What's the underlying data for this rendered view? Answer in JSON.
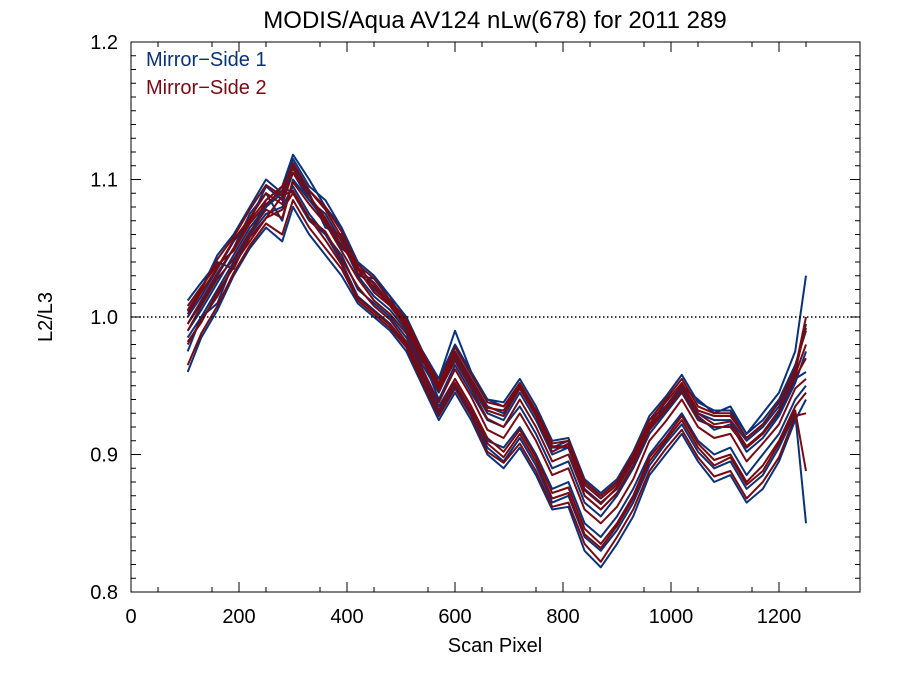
{
  "chart_data": {
    "type": "line",
    "title": "MODIS/Aqua AV124 nLw(678) for 2011 289",
    "xlabel": "Scan Pixel",
    "ylabel": "L2/L3",
    "xlim": [
      0,
      1350
    ],
    "ylim": [
      0.8,
      1.2
    ],
    "x_ticks": [
      0,
      200,
      400,
      600,
      800,
      1000,
      1200
    ],
    "y_ticks": [
      0.8,
      0.9,
      1.0,
      1.1,
      1.2
    ],
    "x_tick_labels": [
      "0",
      "200",
      "400",
      "600",
      "800",
      "1000",
      "1200"
    ],
    "y_tick_labels": [
      "0.8",
      "0.9",
      "1.0",
      "1.1",
      "1.2"
    ],
    "reference_line": {
      "y": 1.0,
      "style": "dotted",
      "color": "#000000"
    },
    "legend": {
      "placement": "top-left",
      "entries": [
        {
          "label": "Mirror−Side 1",
          "color": "#0a3278"
        },
        {
          "label": "Mirror−Side 2",
          "color": "#780a14"
        }
      ]
    },
    "x": [
      105,
      130,
      160,
      190,
      220,
      250,
      280,
      300,
      330,
      360,
      390,
      420,
      450,
      480,
      510,
      540,
      570,
      600,
      630,
      660,
      690,
      720,
      750,
      780,
      810,
      840,
      870,
      900,
      930,
      960,
      990,
      1020,
      1050,
      1080,
      1110,
      1140,
      1170,
      1200,
      1230,
      1250
    ],
    "series": [
      {
        "mirror_side": 1,
        "color": "#0a3278",
        "values": [
          1.012,
          1.025,
          1.04,
          1.035,
          1.06,
          1.085,
          1.095,
          1.118,
          1.1,
          1.08,
          1.065,
          1.03,
          1.028,
          1.015,
          0.99,
          0.975,
          0.955,
          0.99,
          0.96,
          0.94,
          0.935,
          0.95,
          0.93,
          0.905,
          0.91,
          0.88,
          0.87,
          0.88,
          0.9,
          0.925,
          0.935,
          0.95,
          0.94,
          0.93,
          0.935,
          0.915,
          0.93,
          0.945,
          0.975,
          1.03
        ]
      },
      {
        "mirror_side": 1,
        "color": "#0a3278",
        "values": [
          0.995,
          1.01,
          1.03,
          1.05,
          1.075,
          1.09,
          1.07,
          1.1,
          1.085,
          1.07,
          1.05,
          1.04,
          1.02,
          1.01,
          1.0,
          0.97,
          0.94,
          0.965,
          0.945,
          0.925,
          0.92,
          0.935,
          0.915,
          0.89,
          0.895,
          0.865,
          0.855,
          0.87,
          0.89,
          0.915,
          0.93,
          0.945,
          0.925,
          0.92,
          0.92,
          0.905,
          0.915,
          0.93,
          0.955,
          0.96
        ]
      },
      {
        "mirror_side": 1,
        "color": "#0a3278",
        "values": [
          0.975,
          1.0,
          1.01,
          1.04,
          1.06,
          1.08,
          1.095,
          1.09,
          1.07,
          1.06,
          1.045,
          1.02,
          1.01,
          1.0,
          0.985,
          0.96,
          0.935,
          0.955,
          0.935,
          0.91,
          0.905,
          0.92,
          0.9,
          0.875,
          0.88,
          0.85,
          0.84,
          0.855,
          0.875,
          0.9,
          0.915,
          0.93,
          0.91,
          0.9,
          0.905,
          0.885,
          0.9,
          0.915,
          0.94,
          0.95
        ]
      },
      {
        "mirror_side": 1,
        "color": "#0a3278",
        "values": [
          0.96,
          0.985,
          1.005,
          1.03,
          1.05,
          1.065,
          1.055,
          1.08,
          1.06,
          1.045,
          1.03,
          1.01,
          1.0,
          0.99,
          0.975,
          0.95,
          0.925,
          0.945,
          0.925,
          0.9,
          0.89,
          0.905,
          0.885,
          0.86,
          0.862,
          0.83,
          0.818,
          0.835,
          0.855,
          0.885,
          0.9,
          0.915,
          0.895,
          0.88,
          0.885,
          0.865,
          0.875,
          0.895,
          0.925,
          0.94
        ]
      },
      {
        "mirror_side": 1,
        "color": "#0a3278",
        "values": [
          0.99,
          1.005,
          1.025,
          1.045,
          1.065,
          1.08,
          1.09,
          1.105,
          1.085,
          1.075,
          1.055,
          1.03,
          1.015,
          1.005,
          0.99,
          0.965,
          0.945,
          0.97,
          0.95,
          0.93,
          0.925,
          0.945,
          0.925,
          0.9,
          0.905,
          0.875,
          0.865,
          0.875,
          0.895,
          0.92,
          0.935,
          0.95,
          0.93,
          0.925,
          0.925,
          0.91,
          0.92,
          0.935,
          0.96,
          0.995
        ]
      },
      {
        "mirror_side": 1,
        "color": "#0a3278",
        "values": [
          1.0,
          1.015,
          1.035,
          1.055,
          1.07,
          1.095,
          1.085,
          1.11,
          1.09,
          1.065,
          1.06,
          1.035,
          1.025,
          1.01,
          0.995,
          0.97,
          0.95,
          0.975,
          0.955,
          0.935,
          0.93,
          0.95,
          0.93,
          0.905,
          0.905,
          0.87,
          0.86,
          0.872,
          0.892,
          0.918,
          0.932,
          0.948,
          0.928,
          0.918,
          0.922,
          0.902,
          0.912,
          0.928,
          0.952,
          0.975
        ]
      },
      {
        "mirror_side": 1,
        "color": "#0a3278",
        "values": [
          0.985,
          1.0,
          1.02,
          1.04,
          1.06,
          1.075,
          1.08,
          1.095,
          1.075,
          1.06,
          1.04,
          1.015,
          1.005,
          0.995,
          0.98,
          0.955,
          0.93,
          0.95,
          0.93,
          0.905,
          0.895,
          0.912,
          0.892,
          0.865,
          0.87,
          0.84,
          0.83,
          0.845,
          0.865,
          0.892,
          0.908,
          0.922,
          0.902,
          0.89,
          0.895,
          0.875,
          0.885,
          0.905,
          0.93,
          0.85
        ]
      },
      {
        "mirror_side": 1,
        "color": "#0a3278",
        "values": [
          1.005,
          1.02,
          1.045,
          1.06,
          1.08,
          1.1,
          1.09,
          1.115,
          1.095,
          1.085,
          1.065,
          1.04,
          1.03,
          1.015,
          1.0,
          0.975,
          0.955,
          0.98,
          0.96,
          0.94,
          0.938,
          0.955,
          0.935,
          0.91,
          0.912,
          0.882,
          0.872,
          0.882,
          0.902,
          0.928,
          0.942,
          0.958,
          0.938,
          0.932,
          0.932,
          0.915,
          0.925,
          0.94,
          0.965,
          0.99
        ]
      },
      {
        "mirror_side": 2,
        "color": "#780a14",
        "values": [
          1.008,
          1.022,
          1.038,
          1.048,
          1.068,
          1.082,
          1.092,
          1.112,
          1.092,
          1.078,
          1.058,
          1.032,
          1.022,
          1.008,
          0.992,
          0.968,
          0.948,
          0.972,
          0.952,
          0.932,
          0.928,
          0.948,
          0.928,
          0.902,
          0.908,
          0.878,
          0.868,
          0.878,
          0.898,
          0.922,
          0.938,
          0.952,
          0.932,
          0.928,
          0.928,
          0.912,
          0.922,
          0.938,
          0.962,
          1.0
        ]
      },
      {
        "mirror_side": 2,
        "color": "#780a14",
        "values": [
          0.99,
          1.008,
          1.028,
          1.042,
          1.062,
          1.078,
          1.072,
          1.098,
          1.082,
          1.068,
          1.048,
          1.028,
          1.012,
          1.002,
          0.988,
          0.962,
          0.938,
          0.962,
          0.942,
          0.918,
          0.912,
          0.93,
          0.91,
          0.885,
          0.89,
          0.86,
          0.85,
          0.862,
          0.882,
          0.91,
          0.924,
          0.94,
          0.92,
          0.912,
          0.915,
          0.895,
          0.908,
          0.922,
          0.948,
          0.955
        ]
      },
      {
        "mirror_side": 2,
        "color": "#780a14",
        "values": [
          0.98,
          0.998,
          1.015,
          1.038,
          1.055,
          1.072,
          1.088,
          1.092,
          1.072,
          1.062,
          1.042,
          1.022,
          1.008,
          0.998,
          0.982,
          0.958,
          0.932,
          0.955,
          0.935,
          0.912,
          0.902,
          0.918,
          0.898,
          0.872,
          0.876,
          0.846,
          0.835,
          0.85,
          0.87,
          0.898,
          0.912,
          0.928,
          0.908,
          0.896,
          0.9,
          0.88,
          0.892,
          0.91,
          0.935,
          0.945
        ]
      },
      {
        "mirror_side": 2,
        "color": "#780a14",
        "values": [
          0.965,
          0.988,
          1.008,
          1.032,
          1.052,
          1.068,
          1.06,
          1.085,
          1.065,
          1.05,
          1.035,
          1.012,
          1.002,
          0.992,
          0.978,
          0.952,
          0.928,
          0.948,
          0.928,
          0.902,
          0.894,
          0.908,
          0.888,
          0.862,
          0.865,
          0.835,
          0.822,
          0.84,
          0.86,
          0.888,
          0.904,
          0.918,
          0.898,
          0.884,
          0.888,
          0.868,
          0.88,
          0.898,
          0.928,
          0.93
        ]
      },
      {
        "mirror_side": 2,
        "color": "#780a14",
        "values": [
          0.995,
          1.012,
          1.032,
          1.05,
          1.07,
          1.085,
          1.095,
          1.108,
          1.088,
          1.072,
          1.052,
          1.035,
          1.018,
          1.008,
          0.994,
          0.97,
          0.946,
          0.968,
          0.948,
          0.926,
          0.92,
          0.94,
          0.92,
          0.895,
          0.9,
          0.87,
          0.86,
          0.872,
          0.892,
          0.918,
          0.932,
          0.946,
          0.926,
          0.92,
          0.92,
          0.905,
          0.915,
          0.932,
          0.958,
          0.98
        ]
      },
      {
        "mirror_side": 2,
        "color": "#780a14",
        "values": [
          1.002,
          1.018,
          1.036,
          1.056,
          1.072,
          1.09,
          1.082,
          1.105,
          1.088,
          1.07,
          1.056,
          1.036,
          1.024,
          1.01,
          0.996,
          0.972,
          0.95,
          0.974,
          0.954,
          0.934,
          0.932,
          0.95,
          0.93,
          0.906,
          0.906,
          0.874,
          0.864,
          0.876,
          0.896,
          0.92,
          0.934,
          0.95,
          0.93,
          0.922,
          0.924,
          0.906,
          0.916,
          0.932,
          0.956,
          0.97
        ]
      },
      {
        "mirror_side": 2,
        "color": "#780a14",
        "values": [
          0.982,
          0.996,
          1.018,
          1.036,
          1.058,
          1.072,
          1.078,
          1.09,
          1.072,
          1.056,
          1.038,
          1.014,
          1.004,
          0.994,
          0.98,
          0.956,
          0.932,
          0.952,
          0.932,
          0.908,
          0.898,
          0.915,
          0.895,
          0.868,
          0.872,
          0.842,
          0.832,
          0.848,
          0.868,
          0.895,
          0.91,
          0.925,
          0.905,
          0.892,
          0.898,
          0.878,
          0.888,
          0.908,
          0.932,
          0.888
        ]
      },
      {
        "mirror_side": 2,
        "color": "#780a14",
        "values": [
          1.004,
          1.02,
          1.042,
          1.058,
          1.078,
          1.096,
          1.088,
          1.112,
          1.092,
          1.08,
          1.062,
          1.038,
          1.028,
          1.012,
          0.998,
          0.974,
          0.952,
          0.978,
          0.958,
          0.938,
          0.935,
          0.952,
          0.932,
          0.908,
          0.91,
          0.88,
          0.87,
          0.88,
          0.9,
          0.925,
          0.94,
          0.955,
          0.935,
          0.93,
          0.93,
          0.912,
          0.922,
          0.938,
          0.962,
          0.992
        ]
      }
    ]
  }
}
